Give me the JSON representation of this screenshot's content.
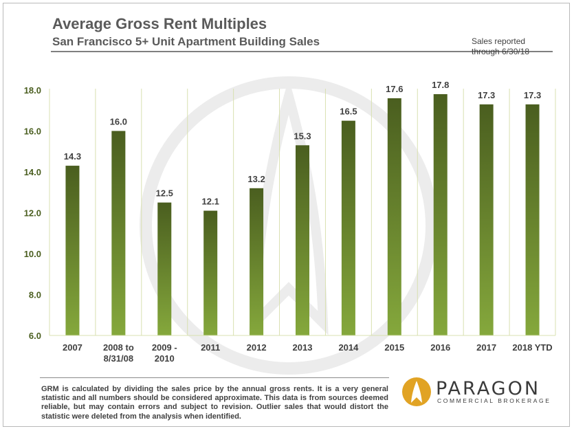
{
  "header": {
    "title": "Average Gross Rent Multiples",
    "subtitle": "San Francisco 5+ Unit Apartment Building Sales",
    "note_line1": "Sales reported",
    "note_line2": "through 6/30/18"
  },
  "footer": {
    "text": "GRM is calculated by dividing the sales price by the annual gross rents. It is a very general statistic and all numbers should be considered approximate. This data is from sources deemed reliable, but may contain errors and subject to revision. Outlier sales that would distort the statistic were deleted from the analysis when identified."
  },
  "logo": {
    "name": "PARAGON",
    "tagline": "COMMERCIAL BROKERAGE"
  },
  "colors": {
    "bar_top": "#4a5e1f",
    "bar_bottom": "#85a83c",
    "axis_text": "#4a5e1f",
    "gridline": "#d8e0b0",
    "logo_circle": "#e1a324"
  },
  "chart_data": {
    "type": "bar",
    "title": "Average Gross Rent Multiples",
    "subtitle": "San Francisco 5+ Unit Apartment Building Sales",
    "categories": [
      [
        "2007"
      ],
      [
        "2008 to",
        "8/31/08"
      ],
      [
        "2009 -",
        "2010"
      ],
      [
        "2011"
      ],
      [
        "2012"
      ],
      [
        "2013"
      ],
      [
        "2014"
      ],
      [
        "2015"
      ],
      [
        "2016"
      ],
      [
        "2017"
      ],
      [
        "2018 YTD"
      ]
    ],
    "values": [
      14.3,
      16.0,
      12.5,
      12.1,
      13.2,
      15.3,
      16.5,
      17.6,
      17.8,
      17.3,
      17.3
    ],
    "value_labels": [
      "14.3",
      "16.0",
      "12.5",
      "12.1",
      "13.2",
      "15.3",
      "16.5",
      "17.6",
      "17.8",
      "17.3",
      "17.3"
    ],
    "ylim": [
      6.0,
      18.0
    ],
    "yticks": [
      6.0,
      8.0,
      10.0,
      12.0,
      14.0,
      16.0,
      18.0
    ],
    "ytick_labels": [
      "6.0",
      "8.0",
      "10.0",
      "12.0",
      "14.0",
      "16.0",
      "18.0"
    ],
    "grid": "vertical separators between categories",
    "legend": "none"
  }
}
